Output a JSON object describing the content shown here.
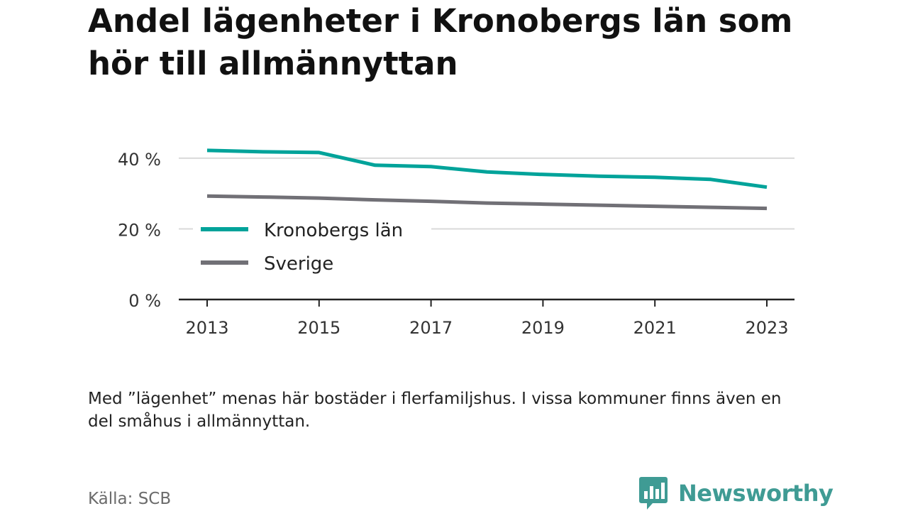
{
  "title": "Andel lägenheter i Kronobergs län som hör till allmännyttan",
  "note": "Med ”lägenhet” menas här bostäder i flerfamiljshus. I vissa kommuner finns även en del småhus i allmännyttan.",
  "source": "Källa: SCB",
  "brand": {
    "name": "Newsworthy",
    "icon": "newsworthy-logo-icon"
  },
  "chart_data": {
    "type": "line",
    "x": [
      2013,
      2014,
      2015,
      2016,
      2017,
      2018,
      2019,
      2020,
      2021,
      2022,
      2023
    ],
    "xticks": [
      2013,
      2015,
      2017,
      2019,
      2021,
      2023
    ],
    "xlim": [
      2012.5,
      2023.9
    ],
    "ylim": [
      0,
      45
    ],
    "yticks": [
      0,
      20,
      40
    ],
    "ytick_labels": [
      "0 %",
      "20 %",
      "40 %"
    ],
    "grid": true,
    "legend": "inside-left",
    "series": [
      {
        "name": "Kronobergs län",
        "color": "#00a39a",
        "values": [
          42.2,
          41.8,
          41.6,
          38.0,
          37.6,
          36.1,
          35.4,
          34.9,
          34.6,
          34.0,
          31.8
        ]
      },
      {
        "name": "Sverige",
        "color": "#717076",
        "values": [
          29.3,
          29.0,
          28.7,
          28.2,
          27.8,
          27.3,
          27.0,
          26.7,
          26.4,
          26.1,
          25.8
        ]
      }
    ]
  }
}
